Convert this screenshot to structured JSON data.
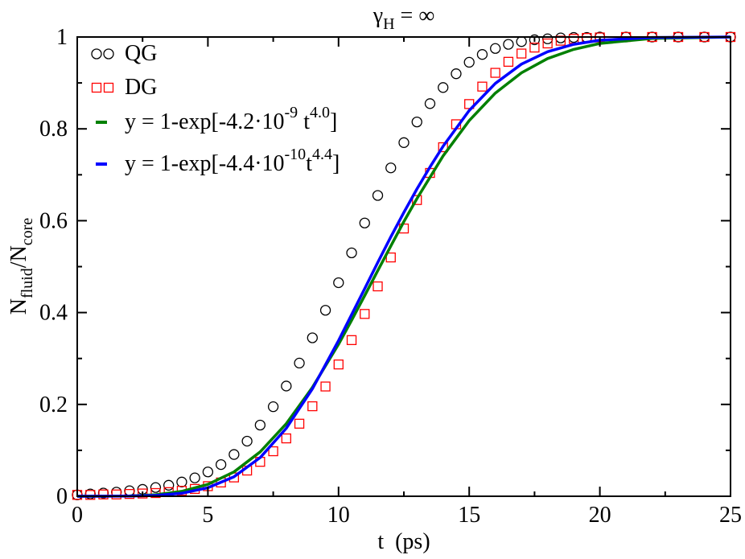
{
  "chart_data": {
    "type": "scatter",
    "title": {
      "main": "γ",
      "sub": "H",
      "rest": " = ∞"
    },
    "xlabel": "t  (ps)",
    "ylabel": {
      "n1": "N",
      "s1": "fluid",
      "slash": "/N",
      "s2": "core"
    },
    "xlim": [
      0,
      25
    ],
    "ylim": [
      0,
      1
    ],
    "x_ticks": [
      0,
      5,
      10,
      15,
      20,
      25
    ],
    "x_tick_labels": [
      "0",
      "5",
      "10",
      "15",
      "20",
      "25"
    ],
    "y_ticks": [
      0,
      0.2,
      0.4,
      0.6,
      0.8,
      1
    ],
    "y_tick_labels": [
      "0",
      "0.2",
      "0.4",
      "0.6",
      "0.8",
      "1"
    ],
    "grid": false,
    "legend_position": "top-left",
    "series": [
      {
        "name": "QG",
        "kind": "points",
        "marker": "circle",
        "color": "#000000",
        "x": [
          0.0,
          0.5,
          1.0,
          1.5,
          2.0,
          2.5,
          3.0,
          3.5,
          4.0,
          4.5,
          5.0,
          5.5,
          6.0,
          6.5,
          7.0,
          7.5,
          8.0,
          8.5,
          9.0,
          9.5,
          10.0,
          10.5,
          11.0,
          11.5,
          12.0,
          12.5,
          13.0,
          13.5,
          14.0,
          14.5,
          15.0,
          15.5,
          16.0,
          16.5,
          17.0,
          17.5,
          18.0,
          18.5,
          19.0,
          19.5,
          20.0,
          21.0,
          22.0,
          23.0,
          24.0,
          25.0
        ],
        "y": [
          0.003,
          0.005,
          0.007,
          0.009,
          0.012,
          0.015,
          0.019,
          0.024,
          0.031,
          0.04,
          0.053,
          0.069,
          0.091,
          0.12,
          0.155,
          0.195,
          0.24,
          0.29,
          0.345,
          0.405,
          0.465,
          0.53,
          0.595,
          0.655,
          0.715,
          0.77,
          0.815,
          0.855,
          0.89,
          0.92,
          0.945,
          0.962,
          0.975,
          0.984,
          0.99,
          0.994,
          0.996,
          0.998,
          0.999,
          0.999,
          1.0,
          1.0,
          1.0,
          1.0,
          1.0,
          1.0
        ]
      },
      {
        "name": "DG",
        "kind": "points",
        "marker": "square",
        "color": "#ff0000",
        "x": [
          0.0,
          0.5,
          1.0,
          1.5,
          2.0,
          2.5,
          3.0,
          3.5,
          4.0,
          4.5,
          5.0,
          5.5,
          6.0,
          6.5,
          7.0,
          7.5,
          8.0,
          8.5,
          9.0,
          9.5,
          10.0,
          10.5,
          11.0,
          11.5,
          12.0,
          12.5,
          13.0,
          13.5,
          14.0,
          14.5,
          15.0,
          15.5,
          16.0,
          16.5,
          17.0,
          17.5,
          18.0,
          18.5,
          19.0,
          19.5,
          20.0,
          21.0,
          22.0,
          23.0,
          24.0,
          25.0
        ],
        "y": [
          0.003,
          0.003,
          0.004,
          0.004,
          0.005,
          0.006,
          0.007,
          0.009,
          0.012,
          0.016,
          0.022,
          0.03,
          0.041,
          0.056,
          0.075,
          0.098,
          0.126,
          0.158,
          0.196,
          0.239,
          0.287,
          0.34,
          0.397,
          0.457,
          0.52,
          0.583,
          0.645,
          0.704,
          0.76,
          0.81,
          0.854,
          0.892,
          0.922,
          0.946,
          0.964,
          0.977,
          0.986,
          0.992,
          0.996,
          0.998,
          0.999,
          1.0,
          1.0,
          1.0,
          1.0,
          1.0
        ]
      },
      {
        "name": "y = 1-exp[-4.2·10-9 t4.0]",
        "kind": "fit-line",
        "color": "#008000",
        "x": [
          0,
          1,
          2,
          3,
          4,
          5,
          6,
          7,
          8,
          9,
          10,
          10.5,
          11,
          11.5,
          12,
          12.5,
          13,
          14,
          15,
          16,
          17,
          18,
          19,
          20,
          22,
          25
        ],
        "y": [
          0.0,
          0.0001,
          0.0007,
          0.0034,
          0.0107,
          0.0259,
          0.0531,
          0.0967,
          0.158,
          0.237,
          0.331,
          0.383,
          0.437,
          0.491,
          0.545,
          0.598,
          0.648,
          0.741,
          0.818,
          0.878,
          0.922,
          0.953,
          0.973,
          0.986,
          0.997,
          1.0
        ],
        "legend": {
          "main": "y = 1-exp[-4.2·10",
          "exp1": "-9",
          "mid": " t",
          "exp2": "4.0",
          "end": "]"
        }
      },
      {
        "name": "y = 1-exp[-4.4·10-10t4.4]",
        "kind": "fit-line",
        "color": "#0000ff",
        "x": [
          0,
          2,
          3,
          4,
          5,
          6,
          7,
          8,
          9,
          10,
          11,
          11.5,
          12,
          12.5,
          13,
          13.5,
          14,
          15,
          16,
          17,
          18,
          19,
          20,
          22,
          25
        ],
        "y": [
          0.0,
          0.0004,
          0.0018,
          0.0065,
          0.0186,
          0.0425,
          0.0843,
          0.148,
          0.234,
          0.339,
          0.452,
          0.509,
          0.565,
          0.618,
          0.669,
          0.717,
          0.762,
          0.84,
          0.899,
          0.941,
          0.968,
          0.984,
          0.993,
          0.999,
          1.0
        ],
        "legend": {
          "main": "y = 1-exp[-4.4·10",
          "exp1": "-10",
          "mid": "t",
          "exp2": "4.4",
          "end": "]"
        }
      }
    ]
  }
}
